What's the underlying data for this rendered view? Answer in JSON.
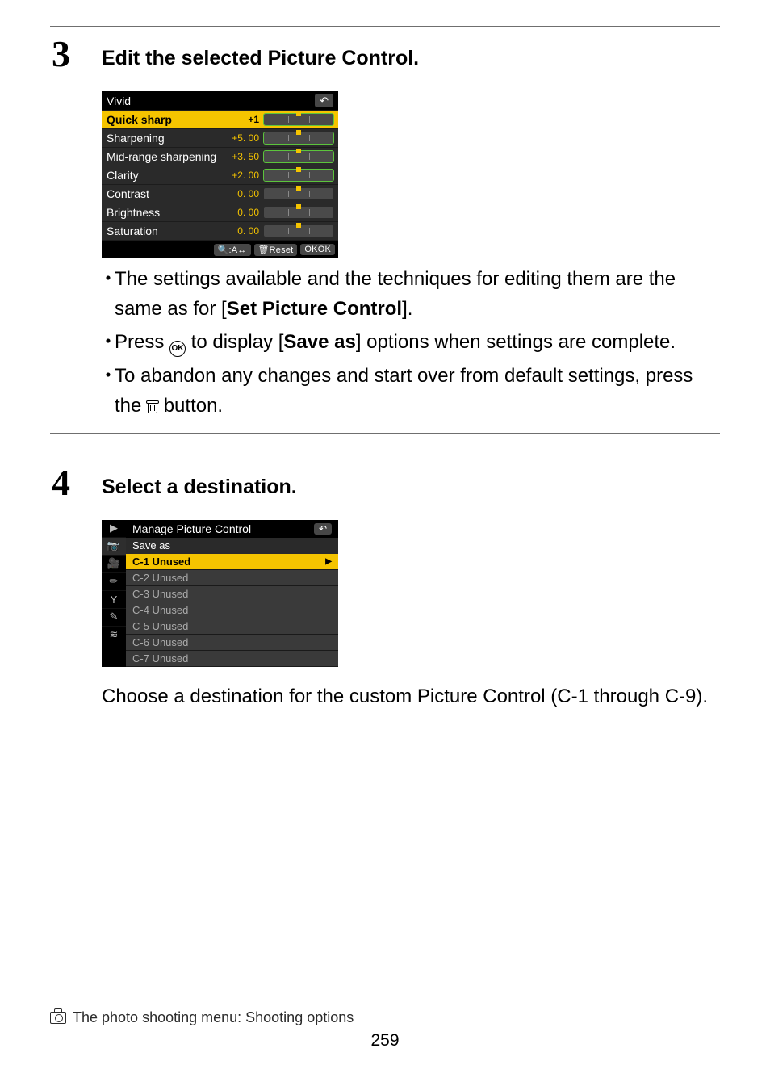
{
  "step3": {
    "num": "3",
    "heading": "Edit the selected Picture Control.",
    "bullets": [
      {
        "pre": "The settings available and the techniques for editing them are the same as for [",
        "bold": "Set Picture Control",
        "post": "]."
      },
      {
        "pre": "Press ",
        "icon": "ok",
        "mid": " to display [",
        "bold": "Save as",
        "post": "] options when settings are complete."
      },
      {
        "pre": "To abandon any changes and start over from default settings, press the ",
        "icon": "trash",
        "post": " button."
      }
    ],
    "lcd": {
      "title": "Vivid",
      "rows": [
        {
          "label": "Quick sharp",
          "value": "+1",
          "hl": true,
          "green": true
        },
        {
          "label": "Sharpening",
          "value": "+5. 00",
          "hl": false,
          "green": true
        },
        {
          "label": "Mid-range sharpening",
          "value": "+3. 50",
          "hl": false,
          "green": true
        },
        {
          "label": "Clarity",
          "value": "+2. 00",
          "hl": false,
          "green": true
        },
        {
          "label": "Contrast",
          "value": "0. 00",
          "hl": false,
          "green": false
        },
        {
          "label": "Brightness",
          "value": "0. 00",
          "hl": false,
          "green": false
        },
        {
          "label": "Saturation",
          "value": "0. 00",
          "hl": false,
          "green": false
        }
      ],
      "footer": [
        "🔍:A↔",
        "🗑Reset",
        "OKOK"
      ]
    }
  },
  "step4": {
    "num": "4",
    "heading": "Select a destination.",
    "menu": {
      "title": "Manage Picture Control",
      "subtitle": "Save as",
      "side_icons": [
        "▶",
        "📷",
        "🎥",
        "✏",
        "Y",
        "✎",
        "≋"
      ],
      "side_selected_index": 1,
      "items": [
        {
          "label": "C-1 Unused",
          "sel": true
        },
        {
          "label": "C-2 Unused",
          "sel": false
        },
        {
          "label": "C-3 Unused",
          "sel": false
        },
        {
          "label": "C-4 Unused",
          "sel": false
        },
        {
          "label": "C-5 Unused",
          "sel": false
        },
        {
          "label": "C-6 Unused",
          "sel": false
        },
        {
          "label": "C-7 Unused",
          "sel": false
        }
      ]
    },
    "body": "Choose a destination for the custom Picture Control (C-1 through C-9)."
  },
  "footer": {
    "text": "The photo shooting menu: Shooting options",
    "page": "259"
  },
  "colors": {
    "rule": "#6f6f6f",
    "highlight": "#f5c400",
    "green": "#5cc43c",
    "lcd_bg": "#2a2a2a"
  }
}
